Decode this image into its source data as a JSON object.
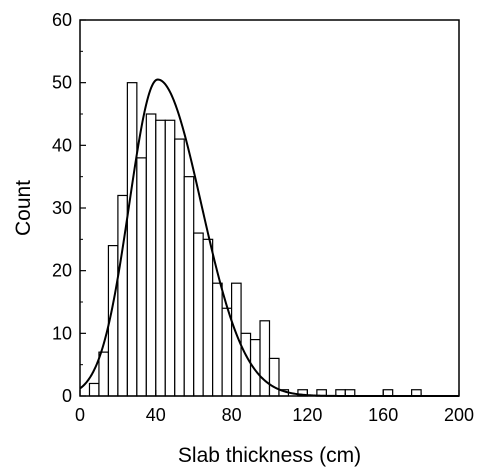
{
  "chart_data": {
    "type": "bar",
    "subtype": "histogram with fitted curve",
    "xlabel": "Slab thickness (cm)",
    "ylabel": "Count",
    "xlim": [
      0,
      200
    ],
    "ylim": [
      0,
      60
    ],
    "xticks": [
      0,
      40,
      80,
      120,
      160,
      200
    ],
    "yticks": [
      0,
      10,
      20,
      30,
      40,
      50,
      60
    ],
    "xtick_labels": [
      "0",
      "40",
      "80",
      "120",
      "160",
      "200"
    ],
    "ytick_labels": [
      "0",
      "10",
      "20",
      "30",
      "40",
      "50",
      "60"
    ],
    "bin_width": 5,
    "grid": false,
    "bar_fill": "#ffffff",
    "bar_stroke": "#000000",
    "bins": [
      {
        "x0": 5,
        "count": 2
      },
      {
        "x0": 10,
        "count": 7
      },
      {
        "x0": 15,
        "count": 24
      },
      {
        "x0": 20,
        "count": 32
      },
      {
        "x0": 25,
        "count": 50
      },
      {
        "x0": 30,
        "count": 38
      },
      {
        "x0": 35,
        "count": 45
      },
      {
        "x0": 40,
        "count": 44
      },
      {
        "x0": 45,
        "count": 44
      },
      {
        "x0": 50,
        "count": 41
      },
      {
        "x0": 55,
        "count": 35
      },
      {
        "x0": 60,
        "count": 26
      },
      {
        "x0": 65,
        "count": 25
      },
      {
        "x0": 70,
        "count": 18
      },
      {
        "x0": 75,
        "count": 14
      },
      {
        "x0": 80,
        "count": 18
      },
      {
        "x0": 85,
        "count": 10
      },
      {
        "x0": 90,
        "count": 9
      },
      {
        "x0": 95,
        "count": 12
      },
      {
        "x0": 100,
        "count": 6
      },
      {
        "x0": 105,
        "count": 1
      },
      {
        "x0": 115,
        "count": 1
      },
      {
        "x0": 125,
        "count": 1
      },
      {
        "x0": 135,
        "count": 1
      },
      {
        "x0": 140,
        "count": 1
      },
      {
        "x0": 160,
        "count": 1
      },
      {
        "x0": 175,
        "count": 1
      }
    ],
    "fit_curve": {
      "type": "gaussian",
      "peak_x": 41,
      "peak_y": 50.5,
      "sigma_left": 15,
      "sigma_right": 23
    }
  }
}
